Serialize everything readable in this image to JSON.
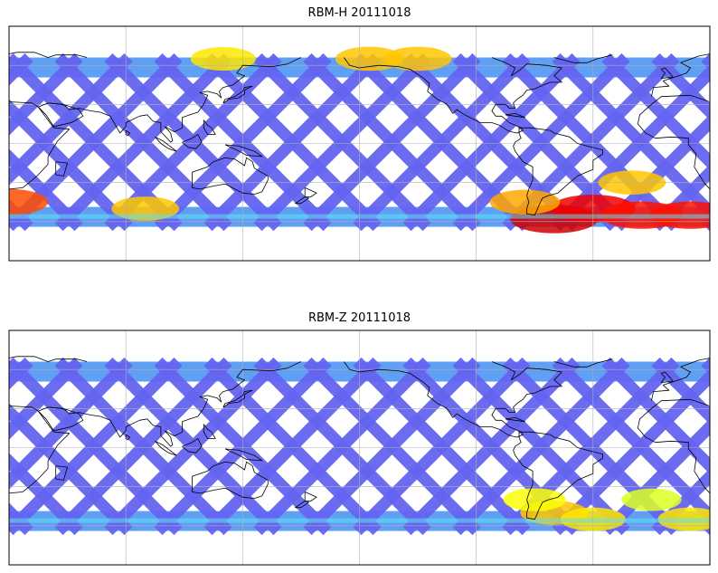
{
  "panels": [
    {
      "title": "RBM-H 20111018",
      "colormap": "jet",
      "hotspots": [
        {
          "lon": 10,
          "lat": -55,
          "level": 0.85
        },
        {
          "lon": 20,
          "lat": -45,
          "level": 0.75
        },
        {
          "lon": 300,
          "lat": -58,
          "level": 0.95
        },
        {
          "lon": 320,
          "lat": -50,
          "level": 0.9
        },
        {
          "lon": 345,
          "lat": -55,
          "level": 0.85
        },
        {
          "lon": 285,
          "lat": -45,
          "level": 0.6
        },
        {
          "lon": 90,
          "lat": -50,
          "level": 0.55
        },
        {
          "lon": 130,
          "lat": 65,
          "level": 0.5
        },
        {
          "lon": 205,
          "lat": 65,
          "level": 0.55
        },
        {
          "lon": 230,
          "lat": 65,
          "level": 0.55
        },
        {
          "lon": 340,
          "lat": -30,
          "level": 0.55
        }
      ]
    },
    {
      "title": "RBM-Z 20111018",
      "colormap": "jet",
      "hotspots": [
        {
          "lon": 10,
          "lat": -55,
          "level": 0.5
        },
        {
          "lon": 300,
          "lat": -50,
          "level": 0.55
        },
        {
          "lon": 320,
          "lat": -55,
          "level": 0.5
        },
        {
          "lon": 290,
          "lat": -40,
          "level": 0.45
        },
        {
          "lon": 350,
          "lat": -40,
          "level": 0.4
        }
      ]
    }
  ],
  "map": {
    "projection": "plate-carree",
    "lon_range": [
      20,
      380
    ],
    "lat_range": [
      -90,
      90
    ],
    "data_lat_range": [
      -64,
      66
    ],
    "gridlines": true,
    "grid_lon_step": 60,
    "grid_lat_step": 30,
    "coastline_color": "#000000"
  }
}
